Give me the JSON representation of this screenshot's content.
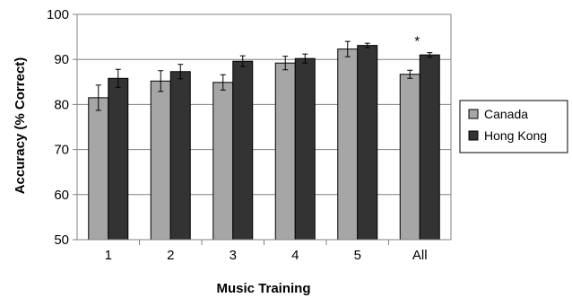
{
  "chart_data": {
    "type": "bar",
    "title": "",
    "xlabel": "Music Training",
    "ylabel": "Accuracy (% Correct)",
    "ylim": [
      50,
      100
    ],
    "yticks": [
      "50",
      "60",
      "70",
      "80",
      "90",
      "100"
    ],
    "categories": [
      "1",
      "2",
      "3",
      "4",
      "5",
      "All"
    ],
    "series": [
      {
        "name": "Canada",
        "color": "#a6a6a6",
        "values": [
          81.5,
          85.2,
          84.9,
          89.2,
          92.3,
          86.7
        ],
        "errors": [
          2.8,
          2.3,
          1.7,
          1.5,
          1.7,
          0.9
        ]
      },
      {
        "name": "Hong Kong",
        "color": "#333333",
        "values": [
          85.8,
          87.3,
          89.6,
          90.2,
          93.1,
          91.0
        ],
        "errors": [
          2.0,
          1.6,
          1.2,
          1.0,
          0.5,
          0.5
        ]
      }
    ],
    "annotations": [
      {
        "category": "All",
        "text": "*"
      }
    ],
    "grid": "horizontal",
    "legend_position": "right"
  }
}
